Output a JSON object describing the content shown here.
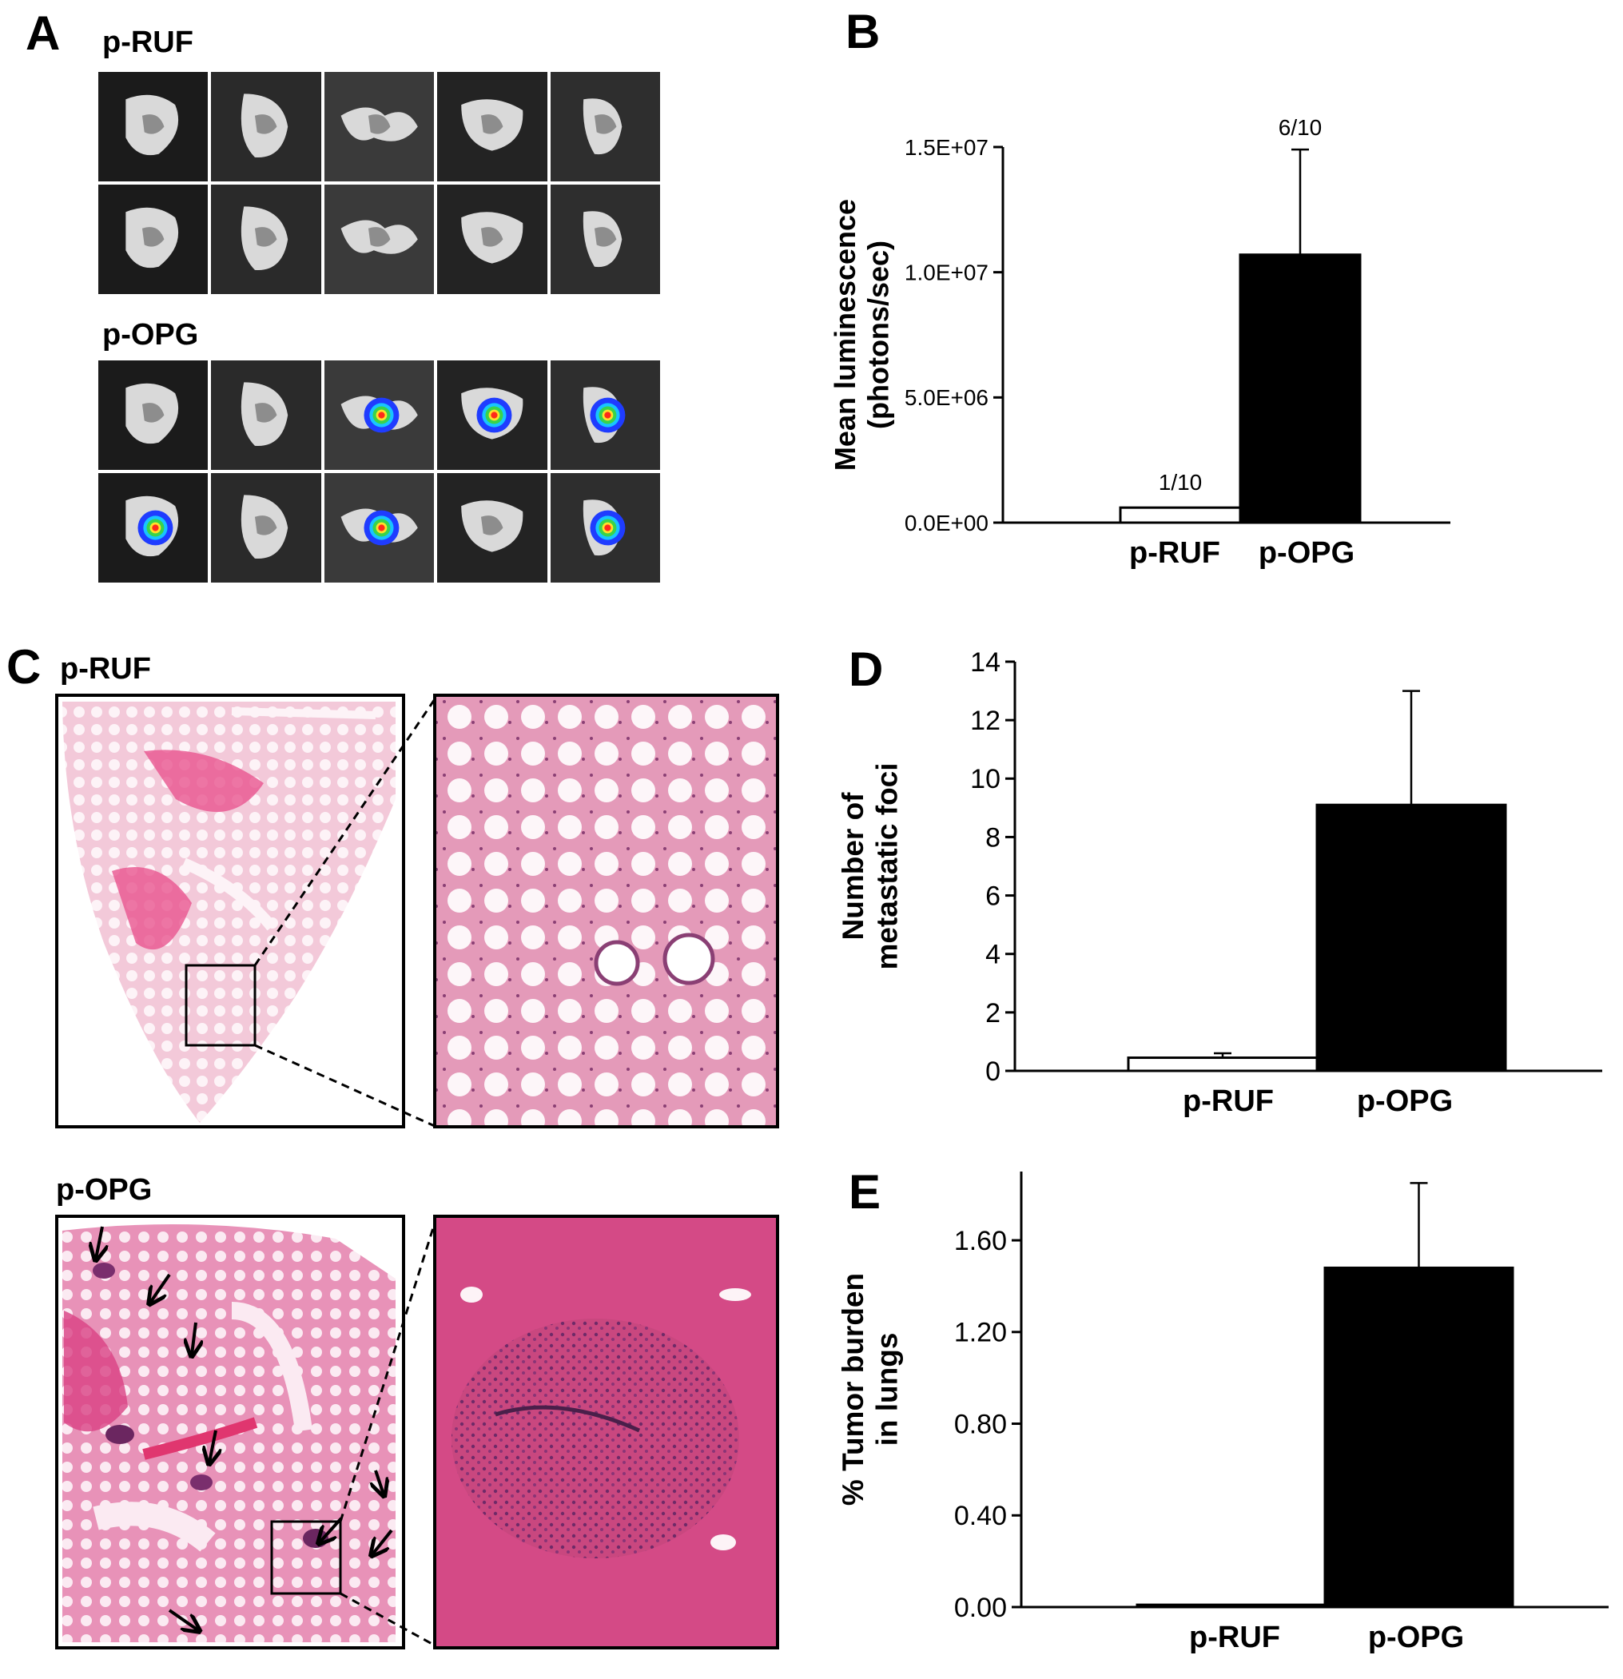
{
  "panels": {
    "a": {
      "letter": "A",
      "top_group": "p-RUF",
      "bottom_group": "p-OPG",
      "top_tiles": [
        "organ-1",
        "organ-2",
        "organ-3",
        "organ-4",
        "organ-5",
        "organ-6",
        "organ-7",
        "organ-8",
        "organ-9",
        "organ-10"
      ],
      "bottom_tiles": [
        "organ-1",
        "organ-2",
        "organ-3",
        "organ-4",
        "organ-5",
        "organ-6",
        "organ-7",
        "organ-8",
        "organ-9",
        "organ-10"
      ]
    },
    "b": {
      "letter": "B"
    },
    "c": {
      "letter": "C",
      "top_group": "p-RUF",
      "bottom_group": "p-OPG"
    },
    "d": {
      "letter": "D"
    },
    "e": {
      "letter": "E"
    }
  },
  "chart_data": [
    {
      "id": "B",
      "type": "bar",
      "categories": [
        "p-RUF",
        "p-OPG"
      ],
      "values": [
        600000,
        10700000
      ],
      "error_plus": [
        0,
        4200000
      ],
      "bar_colors": [
        "#ffffff",
        "#000000"
      ],
      "annotations": [
        "1/10",
        "6/10"
      ],
      "ylabel": [
        "Mean luminescence",
        "(photons/sec)"
      ],
      "yticks": [
        "0.0E+00",
        "5.0E+06",
        "1.0E+07",
        "1.5E+07"
      ],
      "ytick_values": [
        0,
        5000000,
        10000000,
        15000000
      ],
      "ylim": [
        0,
        15000000
      ],
      "grid": false
    },
    {
      "id": "D",
      "type": "bar",
      "categories": [
        "p-RUF",
        "p-OPG"
      ],
      "values": [
        0.45,
        9.1
      ],
      "error_plus": [
        0.15,
        3.9
      ],
      "bar_colors": [
        "#ffffff",
        "#000000"
      ],
      "ylabel": [
        "Number of",
        "metastatic foci"
      ],
      "yticks": [
        "0",
        "2",
        "4",
        "6",
        "8",
        "10",
        "12",
        "14"
      ],
      "ytick_values": [
        0,
        2,
        4,
        6,
        8,
        10,
        12,
        14
      ],
      "ylim": [
        0,
        14
      ],
      "grid": false
    },
    {
      "id": "E",
      "type": "bar",
      "categories": [
        "p-RUF",
        "p-OPG"
      ],
      "values": [
        0.01,
        1.48
      ],
      "error_plus": [
        0,
        0.37
      ],
      "bar_colors": [
        "#ffffff",
        "#000000"
      ],
      "ylabel": [
        "% Tumor burden",
        "in lungs"
      ],
      "yticks": [
        "0.00",
        "0.40",
        "0.80",
        "1.20",
        "1.60"
      ],
      "ytick_values": [
        0,
        0.4,
        0.8,
        1.2,
        1.6
      ],
      "ylim": [
        0,
        1.9
      ],
      "grid": false
    }
  ]
}
